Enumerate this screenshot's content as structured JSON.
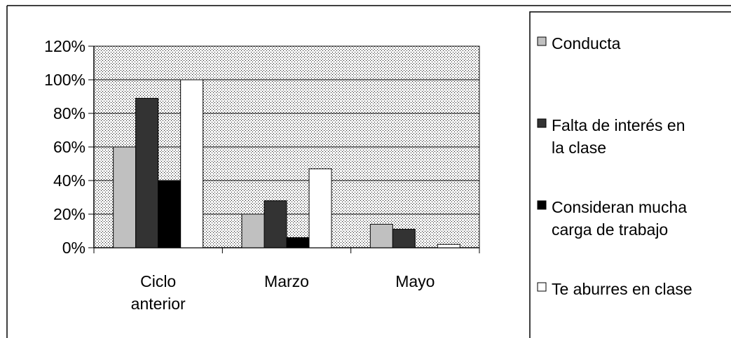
{
  "chart_data": {
    "type": "bar",
    "categories": [
      [
        "Ciclo",
        "anterior"
      ],
      [
        "Marzo"
      ],
      [
        "Mayo"
      ]
    ],
    "series": [
      {
        "name": "Conducta",
        "color": "#c0c0c0",
        "values": [
          0.6,
          0.2,
          0.14
        ]
      },
      {
        "name": "Falta de interés en la clase",
        "name_lines": [
          "Falta de interés en",
          "la clase"
        ],
        "color": "#333333",
        "values": [
          0.89,
          0.28,
          0.11
        ]
      },
      {
        "name": "Consideran mucha carga de trabajo",
        "name_lines": [
          "Consideran mucha",
          "carga de trabajo"
        ],
        "color": "#000000",
        "values": [
          0.4,
          0.06,
          0.0
        ]
      },
      {
        "name": "Te aburres en clase",
        "name_lines": [
          "Te aburres en clase"
        ],
        "color": "#ffffff",
        "values": [
          1.0,
          0.47,
          0.02
        ]
      }
    ],
    "ylim": [
      0,
      1.2
    ],
    "yticks": [
      "0%",
      "20%",
      "40%",
      "60%",
      "80%",
      "100%",
      "120%"
    ],
    "title": "",
    "xlabel": "",
    "ylabel": "",
    "grid": true,
    "legend_position": "right",
    "plot_background": "dotted"
  }
}
